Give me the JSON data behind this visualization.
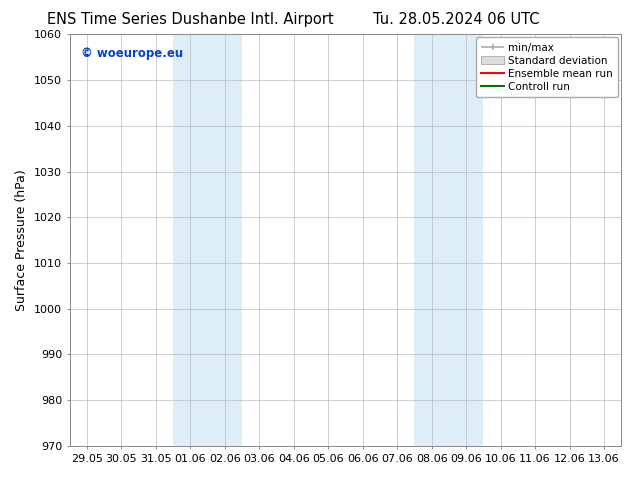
{
  "title_left": "ENS Time Series Dushanbe Intl. Airport",
  "title_right": "Tu. 28.05.2024 06 UTC",
  "ylabel": "Surface Pressure (hPa)",
  "ylim": [
    970,
    1060
  ],
  "yticks": [
    970,
    980,
    990,
    1000,
    1010,
    1020,
    1030,
    1040,
    1050,
    1060
  ],
  "xtick_labels": [
    "29.05",
    "30.05",
    "31.05",
    "01.06",
    "02.06",
    "03.06",
    "04.06",
    "05.06",
    "06.06",
    "07.06",
    "08.06",
    "09.06",
    "10.06",
    "11.06",
    "12.06",
    "13.06"
  ],
  "xtick_positions": [
    0,
    1,
    2,
    3,
    4,
    5,
    6,
    7,
    8,
    9,
    10,
    11,
    12,
    13,
    14,
    15
  ],
  "shaded_regions": [
    {
      "x_start": 3,
      "x_end": 5
    },
    {
      "x_start": 10,
      "x_end": 12
    }
  ],
  "shaded_color": "#ddeef8",
  "watermark": "© woeurope.eu",
  "watermark_color": "#0044cc",
  "legend_items": [
    {
      "label": "min/max"
    },
    {
      "label": "Standard deviation"
    },
    {
      "label": "Ensemble mean run"
    },
    {
      "label": "Controll run"
    }
  ],
  "legend_line_colors": [
    "#aaaaaa",
    "#cccccc",
    "#ff0000",
    "#007700"
  ],
  "bg_color": "#ffffff",
  "plot_bg_color": "#ffffff",
  "grid_color": "#bbbbbb",
  "title_fontsize": 10.5,
  "ylabel_fontsize": 9,
  "tick_fontsize": 8,
  "legend_fontsize": 7.5,
  "watermark_fontsize": 8.5
}
